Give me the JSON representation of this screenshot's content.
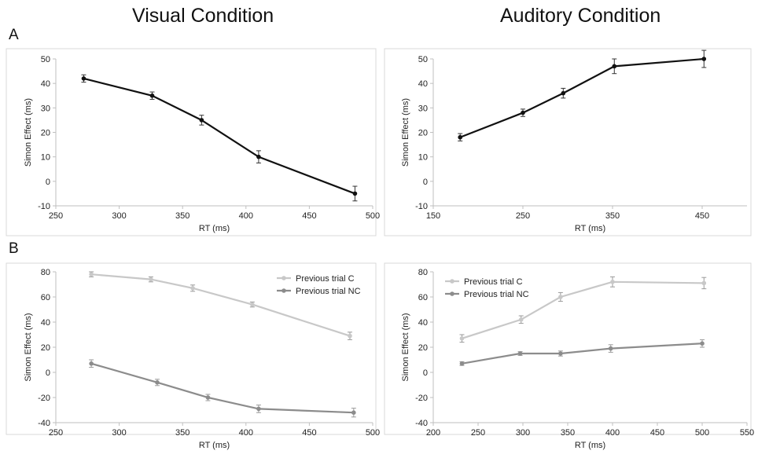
{
  "titles": {
    "left": "Visual Condition",
    "right": "Auditory Condition"
  },
  "panel_labels": {
    "a": "A",
    "b": "B"
  },
  "chart_data": [
    {
      "type": "line",
      "panel": "A",
      "xlabel": "RT (ms)",
      "ylabel": "Simon Effect (ms)",
      "xlim": [
        250,
        500
      ],
      "ylim": [
        -10,
        50
      ],
      "xticks": [
        250,
        300,
        350,
        400,
        450,
        500
      ],
      "yticks": [
        -10,
        0,
        10,
        20,
        30,
        40,
        50
      ],
      "grid": false,
      "legend": null,
      "series": [
        {
          "color": "#111111",
          "x": [
            272,
            326,
            365,
            410,
            486
          ],
          "y": [
            42,
            35,
            25,
            10,
            -5
          ],
          "err": [
            1.5,
            1.5,
            2,
            2.5,
            3
          ]
        }
      ]
    },
    {
      "type": "line",
      "panel": "A",
      "xlabel": "RT (ms)",
      "ylabel": "Simon Effect (ms)",
      "xlim": [
        150,
        500
      ],
      "ylim": [
        -10,
        50
      ],
      "xticks": [
        150,
        250,
        350,
        450
      ],
      "yticks": [
        -10,
        0,
        10,
        20,
        30,
        40,
        50
      ],
      "grid": false,
      "legend": null,
      "series": [
        {
          "color": "#111111",
          "x": [
            180,
            250,
            295,
            352,
            452
          ],
          "y": [
            18,
            28,
            36,
            47,
            50
          ],
          "err": [
            1.5,
            1.5,
            2,
            3,
            3.5
          ]
        }
      ]
    },
    {
      "type": "line",
      "panel": "B",
      "xlabel": "RT (ms)",
      "ylabel": "Simon Effect (ms)",
      "xlim": [
        250,
        500
      ],
      "ylim": [
        -40,
        80
      ],
      "xticks": [
        250,
        300,
        350,
        400,
        450,
        500
      ],
      "yticks": [
        -40,
        -20,
        0,
        20,
        40,
        60,
        80
      ],
      "grid": false,
      "legend": "top-right",
      "series": [
        {
          "name": "Previous trial C",
          "color": "#c8c8c8",
          "x": [
            278,
            325,
            358,
            405,
            482
          ],
          "y": [
            78,
            74,
            67,
            54,
            29
          ],
          "err": [
            2,
            2,
            2.5,
            2,
            3
          ]
        },
        {
          "name": "Previous trial NC",
          "color": "#8c8c8c",
          "x": [
            278,
            330,
            370,
            410,
            485
          ],
          "y": [
            7,
            -8,
            -20,
            -29,
            -32
          ],
          "err": [
            3,
            2.5,
            2.5,
            3,
            3.5
          ]
        }
      ]
    },
    {
      "type": "line",
      "panel": "B",
      "xlabel": "RT (ms)",
      "ylabel": "Simon Effect (ms)",
      "xlim": [
        200,
        550
      ],
      "ylim": [
        -40,
        80
      ],
      "xticks": [
        200,
        250,
        300,
        350,
        400,
        450,
        500,
        550
      ],
      "yticks": [
        -40,
        -20,
        0,
        20,
        40,
        60,
        80
      ],
      "grid": false,
      "legend": "top-left",
      "series": [
        {
          "name": "Previous trial C",
          "color": "#c8c8c8",
          "x": [
            232,
            298,
            342,
            400,
            502
          ],
          "y": [
            27,
            42,
            60,
            72,
            71
          ],
          "err": [
            3,
            3,
            3.5,
            4,
            4.5
          ]
        },
        {
          "name": "Previous trial NC",
          "color": "#8c8c8c",
          "x": [
            232,
            297,
            342,
            398,
            500
          ],
          "y": [
            7,
            15,
            15,
            19,
            23
          ],
          "err": [
            1.5,
            1.5,
            2,
            3,
            3
          ]
        }
      ]
    }
  ]
}
